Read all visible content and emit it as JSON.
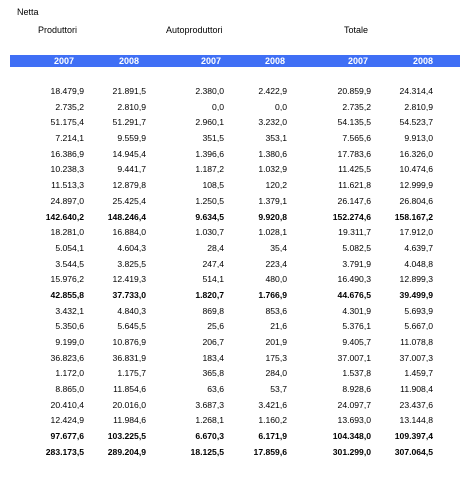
{
  "title": "Netta",
  "groups": {
    "produttori": "Produttori",
    "autoproduttori": "Autoproduttori",
    "totale": "Totale"
  },
  "years": [
    "2007",
    "2008",
    "2007",
    "2008",
    "2007",
    "2008"
  ],
  "rows": [
    {
      "v": [
        "18.479,9",
        "21.891,5",
        "2.380,0",
        "2.422,9",
        "20.859,9",
        "24.314,4"
      ],
      "bold": false
    },
    {
      "v": [
        "2.735,2",
        "2.810,9",
        "0,0",
        "0,0",
        "2.735,2",
        "2.810,9"
      ],
      "bold": false
    },
    {
      "v": [
        "51.175,4",
        "51.291,7",
        "2.960,1",
        "3.232,0",
        "54.135,5",
        "54.523,7"
      ],
      "bold": false
    },
    {
      "v": [
        "7.214,1",
        "9.559,9",
        "351,5",
        "353,1",
        "7.565,6",
        "9.913,0"
      ],
      "bold": false
    },
    {
      "v": [
        "16.386,9",
        "14.945,4",
        "1.396,6",
        "1.380,6",
        "17.783,6",
        "16.326,0"
      ],
      "bold": false
    },
    {
      "v": [
        "10.238,3",
        "9.441,7",
        "1.187,2",
        "1.032,9",
        "11.425,5",
        "10.474,6"
      ],
      "bold": false
    },
    {
      "v": [
        "11.513,3",
        "12.879,8",
        "108,5",
        "120,2",
        "11.621,8",
        "12.999,9"
      ],
      "bold": false
    },
    {
      "v": [
        "24.897,0",
        "25.425,4",
        "1.250,5",
        "1.379,1",
        "26.147,6",
        "26.804,6"
      ],
      "bold": false
    },
    {
      "v": [
        "142.640,2",
        "148.246,4",
        "9.634,5",
        "9.920,8",
        "152.274,6",
        "158.167,2"
      ],
      "bold": true
    },
    {
      "v": [
        "18.281,0",
        "16.884,0",
        "1.030,7",
        "1.028,1",
        "19.311,7",
        "17.912,0"
      ],
      "bold": false
    },
    {
      "v": [
        "5.054,1",
        "4.604,3",
        "28,4",
        "35,4",
        "5.082,5",
        "4.639,7"
      ],
      "bold": false
    },
    {
      "v": [
        "3.544,5",
        "3.825,5",
        "247,4",
        "223,4",
        "3.791,9",
        "4.048,8"
      ],
      "bold": false
    },
    {
      "v": [
        "15.976,2",
        "12.419,3",
        "514,1",
        "480,0",
        "16.490,3",
        "12.899,3"
      ],
      "bold": false
    },
    {
      "v": [
        "42.855,8",
        "37.733,0",
        "1.820,7",
        "1.766,9",
        "44.676,5",
        "39.499,9"
      ],
      "bold": true
    },
    {
      "v": [
        "3.432,1",
        "4.840,3",
        "869,8",
        "853,6",
        "4.301,9",
        "5.693,9"
      ],
      "bold": false
    },
    {
      "v": [
        "5.350,6",
        "5.645,5",
        "25,6",
        "21,6",
        "5.376,1",
        "5.667,0"
      ],
      "bold": false
    },
    {
      "v": [
        "9.199,0",
        "10.876,9",
        "206,7",
        "201,9",
        "9.405,7",
        "11.078,8"
      ],
      "bold": false
    },
    {
      "v": [
        "36.823,6",
        "36.831,9",
        "183,4",
        "175,3",
        "37.007,1",
        "37.007,3"
      ],
      "bold": false
    },
    {
      "v": [
        "1.172,0",
        "1.175,7",
        "365,8",
        "284,0",
        "1.537,8",
        "1.459,7"
      ],
      "bold": false
    },
    {
      "v": [
        "8.865,0",
        "11.854,6",
        "63,6",
        "53,7",
        "8.928,6",
        "11.908,4"
      ],
      "bold": false
    },
    {
      "v": [
        "20.410,4",
        "20.016,0",
        "3.687,3",
        "3.421,6",
        "24.097,7",
        "23.437,6"
      ],
      "bold": false
    },
    {
      "v": [
        "12.424,9",
        "11.984,6",
        "1.268,1",
        "1.160,2",
        "13.693,0",
        "13.144,8"
      ],
      "bold": false
    },
    {
      "v": [
        "97.677,6",
        "103.225,5",
        "6.670,3",
        "6.171,9",
        "104.348,0",
        "109.397,4"
      ],
      "bold": true
    },
    {
      "v": [
        "283.173,5",
        "289.204,9",
        "18.125,5",
        "17.859,6",
        "301.299,0",
        "307.064,5"
      ],
      "bold": true
    }
  ]
}
